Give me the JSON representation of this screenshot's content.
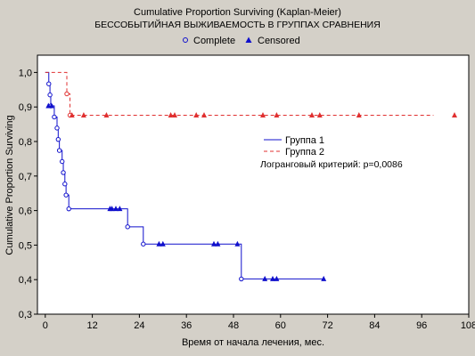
{
  "chart_data": {
    "type": "line",
    "title": "Cumulative Proportion Surviving (Kaplan-Meier)",
    "subtitle": "БЕССОБЫТИЙНАЯ ВЫЖИВАЕМОСТЬ В ГРУППАХ СРАВНЕНИЯ",
    "xlabel": "Время от начала лечения, мес.",
    "ylabel": "Cumulative Proportion Surviving",
    "xlim": [
      -2,
      108
    ],
    "ylim": [
      0.3,
      1.05
    ],
    "xticks": [
      0,
      12,
      24,
      36,
      48,
      60,
      72,
      84,
      96,
      108
    ],
    "xtick_labels": [
      "0",
      "12",
      "24",
      "36",
      "48",
      "60",
      "72",
      "84",
      "96",
      "108"
    ],
    "yticks": [
      0.3,
      0.4,
      0.5,
      0.6,
      0.7,
      0.8,
      0.9,
      1.0
    ],
    "ytick_labels": [
      "0,3",
      "0,4",
      "0,5",
      "0,6",
      "0,7",
      "0,8",
      "0,9",
      "1,0"
    ],
    "grid": false,
    "legend_top": {
      "position": "top-center",
      "items": [
        {
          "label": "Complete",
          "marker": "circle"
        },
        {
          "label": "Censored",
          "marker": "triangle"
        }
      ]
    },
    "legend_inner": {
      "position": "center-right",
      "items": [
        {
          "label": "Группа 1",
          "style": "solid",
          "color": "#1010cc"
        },
        {
          "label": "Группа 2",
          "style": "dashed",
          "color": "#e03030"
        }
      ]
    },
    "annotation": "Логранговый критерий: p=0,0086",
    "series": [
      {
        "name": "Группа 1",
        "color": "#1010cc",
        "line_style": "solid",
        "steps": [
          [
            0,
            1.0
          ],
          [
            0.9,
            0.967
          ],
          [
            1.2,
            0.935
          ],
          [
            1.4,
            0.903
          ],
          [
            2.3,
            0.871
          ],
          [
            3.0,
            0.839
          ],
          [
            3.3,
            0.806
          ],
          [
            3.6,
            0.774
          ],
          [
            4.3,
            0.742
          ],
          [
            4.6,
            0.71
          ],
          [
            5.0,
            0.677
          ],
          [
            5.3,
            0.645
          ],
          [
            6.0,
            0.605
          ],
          [
            21.0,
            0.553
          ],
          [
            25.0,
            0.503
          ],
          [
            50.0,
            0.402
          ],
          [
            71.0,
            0.402
          ]
        ],
        "complete": [
          [
            0.9,
            0.967
          ],
          [
            1.2,
            0.935
          ],
          [
            1.4,
            0.903
          ],
          [
            2.3,
            0.871
          ],
          [
            3.0,
            0.839
          ],
          [
            3.3,
            0.806
          ],
          [
            3.6,
            0.774
          ],
          [
            4.3,
            0.742
          ],
          [
            4.6,
            0.71
          ],
          [
            5.0,
            0.677
          ],
          [
            5.3,
            0.645
          ],
          [
            6.0,
            0.605
          ],
          [
            21.0,
            0.553
          ],
          [
            25.0,
            0.503
          ],
          [
            50.0,
            0.402
          ]
        ],
        "censored": [
          [
            0.8,
            0.903
          ],
          [
            1.6,
            0.903
          ],
          [
            16.5,
            0.605
          ],
          [
            17.0,
            0.605
          ],
          [
            18.0,
            0.605
          ],
          [
            19.0,
            0.605
          ],
          [
            29.0,
            0.503
          ],
          [
            30.0,
            0.503
          ],
          [
            43.0,
            0.503
          ],
          [
            44.0,
            0.503
          ],
          [
            49.0,
            0.503
          ],
          [
            56.0,
            0.402
          ],
          [
            58.0,
            0.402
          ],
          [
            59.0,
            0.402
          ],
          [
            71.0,
            0.402
          ]
        ]
      },
      {
        "name": "Группа 2",
        "color": "#e03030",
        "line_style": "dashed",
        "steps": [
          [
            0,
            1.0
          ],
          [
            5.5,
            0.938
          ],
          [
            6.3,
            0.876
          ],
          [
            99.0,
            0.876
          ]
        ],
        "complete": [
          [
            5.5,
            0.938
          ],
          [
            6.3,
            0.876
          ]
        ],
        "censored": [
          [
            6.8,
            0.876
          ],
          [
            9.8,
            0.876
          ],
          [
            15.6,
            0.876
          ],
          [
            32.0,
            0.876
          ],
          [
            33.0,
            0.876
          ],
          [
            38.5,
            0.876
          ],
          [
            40.5,
            0.876
          ],
          [
            55.5,
            0.876
          ],
          [
            59.0,
            0.876
          ],
          [
            68.0,
            0.876
          ],
          [
            70.0,
            0.876
          ],
          [
            80.0,
            0.876
          ],
          [
            109.5,
            0.876
          ]
        ]
      }
    ]
  }
}
